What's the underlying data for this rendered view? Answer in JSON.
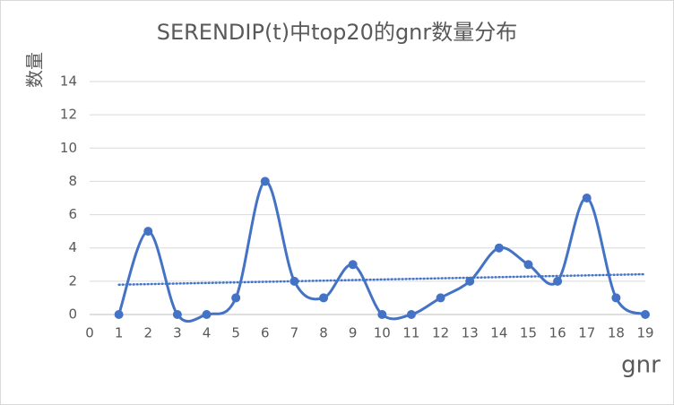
{
  "chart_data": {
    "type": "line",
    "title": "SERENDIP(t)中top20的gnr数量分布",
    "x_label": "gnr",
    "y_label": "数量",
    "x": [
      1,
      2,
      3,
      4,
      5,
      6,
      7,
      8,
      9,
      10,
      11,
      12,
      13,
      14,
      15,
      16,
      17,
      18,
      19
    ],
    "series": [
      {
        "color": "#4472c4",
        "values": [
          0,
          5,
          0,
          0,
          1,
          8,
          2,
          1,
          3,
          0,
          0,
          1,
          2,
          4,
          3,
          2,
          7,
          1,
          0
        ]
      }
    ],
    "smooth": true,
    "markers": true,
    "trendline": "linear",
    "xlim": [
      0,
      19
    ],
    "xticks": [
      0,
      1,
      2,
      3,
      4,
      5,
      6,
      7,
      8,
      9,
      10,
      11,
      12,
      13,
      14,
      15,
      16,
      17,
      18,
      19
    ],
    "ylim": [
      0,
      14
    ],
    "yticks": [
      0,
      2,
      4,
      6,
      8,
      10,
      12,
      14
    ],
    "grid": true
  }
}
